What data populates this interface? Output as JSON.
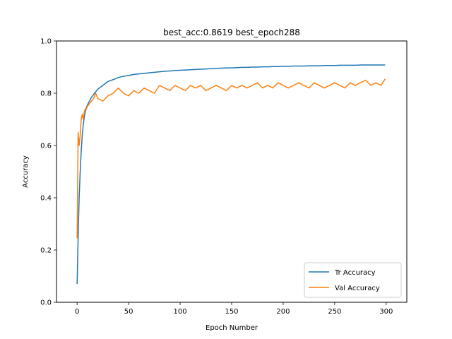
{
  "chart_data": {
    "type": "line",
    "title": "best_acc:0.8619 best_epoch288",
    "xlabel": "Epoch Number",
    "ylabel": "Accuracy",
    "xlim": [
      -20,
      320
    ],
    "ylim": [
      0,
      1
    ],
    "xticks": [
      0,
      50,
      100,
      150,
      200,
      250,
      300
    ],
    "yticks": [
      0.0,
      0.2,
      0.4,
      0.6,
      0.8,
      1.0
    ],
    "ytick_labels": [
      "0.0",
      "0.2",
      "0.4",
      "0.6",
      "0.8",
      "1.0"
    ],
    "grid": false,
    "legend_position": "lower-right",
    "series": [
      {
        "name": "Tr Accuracy",
        "color": "#1f77b4",
        "x": [
          0,
          1,
          2,
          3,
          4,
          5,
          6,
          7,
          8,
          9,
          10,
          12,
          14,
          16,
          18,
          20,
          25,
          30,
          35,
          40,
          45,
          50,
          55,
          60,
          65,
          70,
          75,
          80,
          85,
          90,
          95,
          100,
          105,
          110,
          115,
          120,
          125,
          130,
          135,
          140,
          145,
          150,
          155,
          160,
          165,
          170,
          175,
          180,
          185,
          190,
          195,
          200,
          205,
          210,
          215,
          220,
          225,
          230,
          235,
          240,
          245,
          250,
          255,
          260,
          265,
          270,
          275,
          280,
          285,
          290,
          295,
          299
        ],
        "y": [
          0.07,
          0.25,
          0.4,
          0.5,
          0.58,
          0.64,
          0.68,
          0.71,
          0.73,
          0.745,
          0.755,
          0.77,
          0.785,
          0.795,
          0.805,
          0.815,
          0.83,
          0.845,
          0.852,
          0.86,
          0.865,
          0.868,
          0.872,
          0.874,
          0.876,
          0.878,
          0.88,
          0.882,
          0.884,
          0.885,
          0.887,
          0.888,
          0.889,
          0.89,
          0.891,
          0.892,
          0.893,
          0.894,
          0.895,
          0.896,
          0.897,
          0.897,
          0.898,
          0.899,
          0.899,
          0.9,
          0.9,
          0.901,
          0.901,
          0.902,
          0.902,
          0.903,
          0.903,
          0.904,
          0.904,
          0.904,
          0.905,
          0.905,
          0.905,
          0.906,
          0.906,
          0.906,
          0.907,
          0.907,
          0.907,
          0.907,
          0.908,
          0.908,
          0.908,
          0.908,
          0.908,
          0.908
        ]
      },
      {
        "name": "Val Accuracy",
        "color": "#ff7f0e",
        "x": [
          0,
          1,
          2,
          3,
          4,
          5,
          6,
          7,
          8,
          9,
          10,
          12,
          14,
          16,
          18,
          20,
          25,
          30,
          35,
          40,
          45,
          50,
          55,
          60,
          65,
          70,
          75,
          80,
          85,
          90,
          95,
          100,
          105,
          110,
          115,
          120,
          125,
          130,
          135,
          140,
          145,
          150,
          155,
          160,
          165,
          170,
          175,
          180,
          185,
          190,
          195,
          200,
          205,
          210,
          215,
          220,
          225,
          230,
          235,
          240,
          245,
          250,
          255,
          260,
          265,
          270,
          275,
          280,
          285,
          290,
          295,
          299
        ],
        "y": [
          0.245,
          0.65,
          0.6,
          0.64,
          0.7,
          0.72,
          0.7,
          0.73,
          0.74,
          0.74,
          0.75,
          0.76,
          0.77,
          0.78,
          0.8,
          0.78,
          0.77,
          0.79,
          0.8,
          0.82,
          0.8,
          0.79,
          0.81,
          0.8,
          0.82,
          0.81,
          0.8,
          0.83,
          0.82,
          0.81,
          0.83,
          0.82,
          0.81,
          0.83,
          0.82,
          0.83,
          0.81,
          0.82,
          0.83,
          0.82,
          0.81,
          0.83,
          0.82,
          0.83,
          0.82,
          0.83,
          0.84,
          0.82,
          0.83,
          0.82,
          0.84,
          0.83,
          0.82,
          0.83,
          0.84,
          0.83,
          0.82,
          0.84,
          0.83,
          0.82,
          0.83,
          0.84,
          0.83,
          0.82,
          0.84,
          0.83,
          0.84,
          0.85,
          0.83,
          0.84,
          0.83,
          0.855
        ]
      }
    ]
  }
}
